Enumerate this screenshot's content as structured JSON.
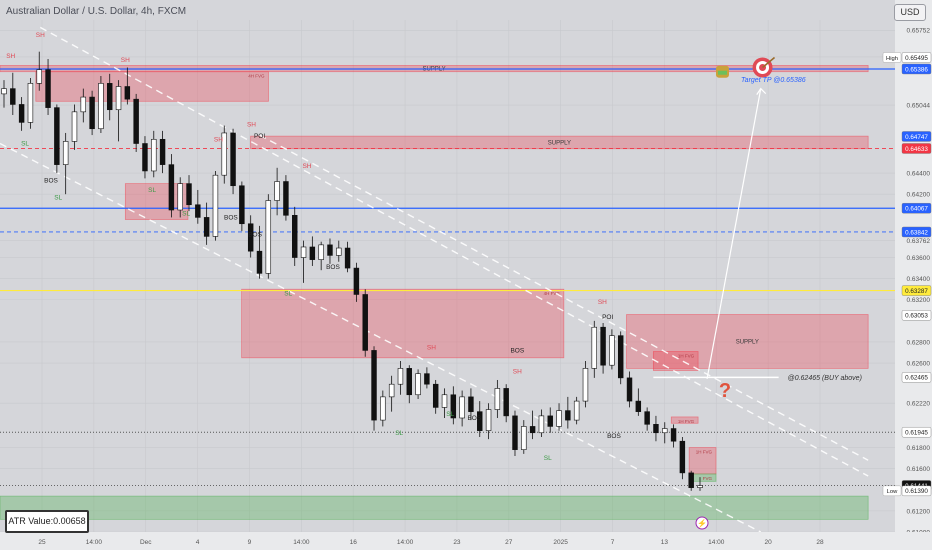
{
  "header": {
    "symbol_title": "Australian Dollar / U.S. Dollar, 4h, FXCM",
    "currency_badge": "USD"
  },
  "indicator": {
    "atr_label": "ATR Value:0.00658"
  },
  "chart_data": {
    "type": "candlestick",
    "title": "Australian Dollar / U.S. Dollar, 4h, FXCM",
    "ylim": [
      0.61,
      0.6585
    ],
    "y_ticks": [
      0.65752,
      0.655,
      0.65044,
      0.644,
      0.642,
      0.63762,
      0.636,
      0.634,
      0.632,
      0.628,
      0.626,
      0.6222,
      0.618,
      0.616,
      0.612,
      0.61
    ],
    "y_tick_labels": [
      "0.65752",
      "0.65500",
      "0.65044",
      "0.64400",
      "0.64200",
      "0.63762",
      "0.63600",
      "0.63400",
      "0.63200",
      "0.62800",
      "0.62600",
      "0.62220",
      "0.61800",
      "0.61600",
      "0.61200",
      "0.61000"
    ],
    "x_tick_labels": [
      "25",
      "14:00",
      "Dec",
      "4",
      "9",
      "14:00",
      "16",
      "14:00",
      "23",
      "27",
      "2025",
      "7",
      "13",
      "14:00",
      "20",
      "28"
    ],
    "price_markers": [
      {
        "label": "High",
        "value": 0.65495,
        "price_text": "0.65495",
        "color": "#ffffff",
        "text_color": "#222222"
      },
      {
        "label": "",
        "value": 0.65386,
        "price_text": "0.65386",
        "color": "#2962ff",
        "text_color": "#ffffff"
      },
      {
        "label": "",
        "value": 0.64747,
        "price_text": "0.64747",
        "color": "#2962ff",
        "text_color": "#ffffff"
      },
      {
        "label": "",
        "value": 0.64633,
        "price_text": "0.64633",
        "color": "#f23645",
        "text_color": "#ffffff"
      },
      {
        "label": "",
        "value": 0.64067,
        "price_text": "0.64067",
        "color": "#2962ff",
        "text_color": "#ffffff"
      },
      {
        "label": "",
        "value": 0.63842,
        "price_text": "0.63842",
        "color": "#2962ff",
        "text_color": "#ffffff"
      },
      {
        "label": "",
        "value": 0.63287,
        "price_text": "0.63287",
        "color": "#ffeb3b",
        "text_color": "#222222"
      },
      {
        "label": "",
        "value": 0.63053,
        "price_text": "0.63053",
        "color": "#ffffff",
        "text_color": "#222222"
      },
      {
        "label": "",
        "value": 0.62465,
        "price_text": "0.62465",
        "color": "#ffffff",
        "text_color": "#222222"
      },
      {
        "label": "",
        "value": 0.61945,
        "price_text": "0.61945",
        "color": "#ffffff",
        "text_color": "#222222"
      },
      {
        "label": "",
        "value": 0.61441,
        "price_text": "0.61441",
        "color": "#111111",
        "text_color": "#ffffff"
      },
      {
        "label": "Low",
        "value": 0.6139,
        "price_text": "0.61390",
        "color": "#ffffff",
        "text_color": "#222222"
      }
    ],
    "horizontal_levels": [
      {
        "value": 0.65386,
        "color": "#2962ff",
        "style": "solid"
      },
      {
        "value": 0.64067,
        "color": "#2962ff",
        "style": "solid"
      },
      {
        "value": 0.63842,
        "color": "#2962ff",
        "style": "dashed"
      },
      {
        "value": 0.64633,
        "color": "#f23645",
        "style": "dashed"
      },
      {
        "value": 0.63287,
        "color": "#ffeb3b",
        "style": "solid"
      },
      {
        "value": 0.61945,
        "color": "#555555",
        "style": "dotted"
      },
      {
        "value": 0.61441,
        "color": "#555555",
        "style": "dotted"
      }
    ],
    "zones": [
      {
        "kind": "supply",
        "label": "SUPPLY",
        "label_fvg": "",
        "y_top": 0.6542,
        "y_bottom": 0.6536,
        "x_start": 0.0,
        "x_end": 0.97
      },
      {
        "kind": "supply",
        "label": "",
        "label_fvg": "4H FVG",
        "y_top": 0.6536,
        "y_bottom": 0.6508,
        "x_start": 0.04,
        "x_end": 0.3
      },
      {
        "kind": "supply",
        "label": "SUPPLY",
        "label_fvg": "",
        "y_top": 0.6475,
        "y_bottom": 0.6463,
        "x_start": 0.28,
        "x_end": 0.97
      },
      {
        "kind": "supply",
        "label": "",
        "label_fvg": "",
        "y_top": 0.643,
        "y_bottom": 0.6396,
        "x_start": 0.14,
        "x_end": 0.21
      },
      {
        "kind": "supply",
        "label": "",
        "label_fvg": "4H FVG",
        "y_top": 0.633,
        "y_bottom": 0.6265,
        "x_start": 0.27,
        "x_end": 0.63
      },
      {
        "kind": "supply",
        "label": "SUPPLY",
        "label_fvg": "",
        "y_top": 0.6306,
        "y_bottom": 0.6255,
        "x_start": 0.7,
        "x_end": 0.97
      },
      {
        "kind": "supply",
        "label": "",
        "label_fvg": "1H FVG",
        "y_top": 0.6271,
        "y_bottom": 0.6253,
        "x_start": 0.73,
        "x_end": 0.78
      },
      {
        "kind": "supply",
        "label": "",
        "label_fvg": "1H FVG",
        "y_top": 0.6209,
        "y_bottom": 0.6203,
        "x_start": 0.75,
        "x_end": 0.78
      },
      {
        "kind": "supply",
        "label": "",
        "label_fvg": "1H FVG",
        "y_top": 0.618,
        "y_bottom": 0.6155,
        "x_start": 0.77,
        "x_end": 0.8
      },
      {
        "kind": "demand",
        "label": "",
        "label_fvg": "FVG",
        "y_top": 0.6155,
        "y_bottom": 0.6148,
        "x_start": 0.77,
        "x_end": 0.8
      },
      {
        "kind": "demand",
        "label": "",
        "label_fvg": "",
        "y_top": 0.6134,
        "y_bottom": 0.6112,
        "x_start": 0.0,
        "x_end": 0.97
      }
    ],
    "structure_labels": [
      {
        "text": "SH",
        "kind": "sh",
        "x": 0.045,
        "y": 0.6569
      },
      {
        "text": "SH",
        "kind": "sh",
        "x": 0.012,
        "y": 0.6549
      },
      {
        "text": "SH",
        "kind": "sh",
        "x": 0.14,
        "y": 0.6545
      },
      {
        "text": "SH",
        "kind": "sh",
        "x": 0.281,
        "y": 0.6484
      },
      {
        "text": "SH",
        "kind": "sh",
        "x": 0.244,
        "y": 0.647
      },
      {
        "text": "SH",
        "kind": "sh",
        "x": 0.343,
        "y": 0.6445
      },
      {
        "text": "SH",
        "kind": "sh",
        "x": 0.482,
        "y": 0.6273
      },
      {
        "text": "SH",
        "kind": "sh",
        "x": 0.578,
        "y": 0.625
      },
      {
        "text": "SH",
        "kind": "sh",
        "x": 0.673,
        "y": 0.6316
      },
      {
        "text": "SL",
        "kind": "sl",
        "x": 0.028,
        "y": 0.6466
      },
      {
        "text": "SL",
        "kind": "sl",
        "x": 0.065,
        "y": 0.6415
      },
      {
        "text": "SL",
        "kind": "sl",
        "x": 0.17,
        "y": 0.6422
      },
      {
        "text": "SL",
        "kind": "sl",
        "x": 0.208,
        "y": 0.64
      },
      {
        "text": "SL",
        "kind": "sl",
        "x": 0.322,
        "y": 0.6324
      },
      {
        "text": "SL",
        "kind": "sl",
        "x": 0.446,
        "y": 0.6192
      },
      {
        "text": "SL",
        "kind": "sl",
        "x": 0.503,
        "y": 0.621
      },
      {
        "text": "SL",
        "kind": "sl",
        "x": 0.612,
        "y": 0.6168
      },
      {
        "text": "BOS",
        "kind": "bos",
        "x": 0.057,
        "y": 0.6431
      },
      {
        "text": "BOS",
        "kind": "bos",
        "x": 0.258,
        "y": 0.6396
      },
      {
        "text": "BOS",
        "kind": "bos",
        "x": 0.285,
        "y": 0.638
      },
      {
        "text": "BOS",
        "kind": "bos",
        "x": 0.372,
        "y": 0.6349
      },
      {
        "text": "BOS",
        "kind": "bos",
        "x": 0.578,
        "y": 0.627
      },
      {
        "text": "BOS",
        "kind": "bos",
        "x": 0.53,
        "y": 0.6206
      },
      {
        "text": "BOS",
        "kind": "bos",
        "x": 0.686,
        "y": 0.6189
      },
      {
        "text": "POI",
        "kind": "poi",
        "x": 0.29,
        "y": 0.6473
      },
      {
        "text": "POI",
        "kind": "poi",
        "x": 0.679,
        "y": 0.6302
      }
    ],
    "annotations": {
      "buy_label": "@0.62465 (BUY above)",
      "target_label": "Target TP @0.65386",
      "question_mark": "?"
    },
    "channel": {
      "upper": [
        [
          0.045,
          0.6578
        ],
        [
          0.97,
          0.6153
        ]
      ],
      "lower": [
        [
          0.0,
          0.6468
        ],
        [
          0.85,
          0.61
        ]
      ],
      "mid": [
        [
          0.29,
          0.6476
        ],
        [
          0.97,
          0.6168
        ]
      ]
    },
    "projection_arrow": {
      "from": [
        0.79,
        0.6245
      ],
      "to": [
        0.85,
        0.652
      ]
    },
    "candles": [
      {
        "o": 0.6515,
        "h": 0.6528,
        "l": 0.6502,
        "c": 0.652
      },
      {
        "o": 0.652,
        "h": 0.6535,
        "l": 0.6495,
        "c": 0.6505
      },
      {
        "o": 0.6505,
        "h": 0.6512,
        "l": 0.648,
        "c": 0.6488
      },
      {
        "o": 0.6488,
        "h": 0.653,
        "l": 0.6482,
        "c": 0.6525
      },
      {
        "o": 0.6525,
        "h": 0.6555,
        "l": 0.6518,
        "c": 0.6538
      },
      {
        "o": 0.6538,
        "h": 0.6548,
        "l": 0.6495,
        "c": 0.6502
      },
      {
        "o": 0.6502,
        "h": 0.6505,
        "l": 0.644,
        "c": 0.6448
      },
      {
        "o": 0.6448,
        "h": 0.6478,
        "l": 0.642,
        "c": 0.647
      },
      {
        "o": 0.647,
        "h": 0.6505,
        "l": 0.6462,
        "c": 0.6498
      },
      {
        "o": 0.6498,
        "h": 0.652,
        "l": 0.6488,
        "c": 0.6512
      },
      {
        "o": 0.6512,
        "h": 0.6518,
        "l": 0.6476,
        "c": 0.6482
      },
      {
        "o": 0.6482,
        "h": 0.6532,
        "l": 0.6478,
        "c": 0.6525
      },
      {
        "o": 0.6525,
        "h": 0.6534,
        "l": 0.649,
        "c": 0.65
      },
      {
        "o": 0.65,
        "h": 0.6528,
        "l": 0.647,
        "c": 0.6522
      },
      {
        "o": 0.6522,
        "h": 0.654,
        "l": 0.6505,
        "c": 0.651
      },
      {
        "o": 0.651,
        "h": 0.6515,
        "l": 0.646,
        "c": 0.6468
      },
      {
        "o": 0.6468,
        "h": 0.6475,
        "l": 0.6435,
        "c": 0.6442
      },
      {
        "o": 0.6442,
        "h": 0.648,
        "l": 0.6436,
        "c": 0.6472
      },
      {
        "o": 0.6472,
        "h": 0.648,
        "l": 0.644,
        "c": 0.6448
      },
      {
        "o": 0.6448,
        "h": 0.6458,
        "l": 0.6398,
        "c": 0.6405
      },
      {
        "o": 0.6405,
        "h": 0.6436,
        "l": 0.6398,
        "c": 0.643
      },
      {
        "o": 0.643,
        "h": 0.6438,
        "l": 0.6404,
        "c": 0.641
      },
      {
        "o": 0.641,
        "h": 0.6424,
        "l": 0.6392,
        "c": 0.6398
      },
      {
        "o": 0.6398,
        "h": 0.6412,
        "l": 0.6372,
        "c": 0.638
      },
      {
        "o": 0.638,
        "h": 0.6442,
        "l": 0.6376,
        "c": 0.6438
      },
      {
        "o": 0.6438,
        "h": 0.6485,
        "l": 0.643,
        "c": 0.6478
      },
      {
        "o": 0.6478,
        "h": 0.6482,
        "l": 0.642,
        "c": 0.6428
      },
      {
        "o": 0.6428,
        "h": 0.6432,
        "l": 0.6385,
        "c": 0.6392
      },
      {
        "o": 0.6392,
        "h": 0.64,
        "l": 0.636,
        "c": 0.6366
      },
      {
        "o": 0.6366,
        "h": 0.639,
        "l": 0.634,
        "c": 0.6345
      },
      {
        "o": 0.6345,
        "h": 0.642,
        "l": 0.634,
        "c": 0.6414
      },
      {
        "o": 0.6414,
        "h": 0.6445,
        "l": 0.64,
        "c": 0.6432
      },
      {
        "o": 0.6432,
        "h": 0.6438,
        "l": 0.6395,
        "c": 0.64
      },
      {
        "o": 0.64,
        "h": 0.6408,
        "l": 0.6352,
        "c": 0.636
      },
      {
        "o": 0.636,
        "h": 0.6376,
        "l": 0.6336,
        "c": 0.637
      },
      {
        "o": 0.637,
        "h": 0.638,
        "l": 0.6352,
        "c": 0.6358
      },
      {
        "o": 0.6358,
        "h": 0.6375,
        "l": 0.6348,
        "c": 0.6372
      },
      {
        "o": 0.6372,
        "h": 0.6378,
        "l": 0.6354,
        "c": 0.6362
      },
      {
        "o": 0.6362,
        "h": 0.6376,
        "l": 0.6356,
        "c": 0.6369
      },
      {
        "o": 0.6369,
        "h": 0.6375,
        "l": 0.6346,
        "c": 0.635
      },
      {
        "o": 0.635,
        "h": 0.6355,
        "l": 0.6318,
        "c": 0.6325
      },
      {
        "o": 0.6325,
        "h": 0.633,
        "l": 0.6266,
        "c": 0.6272
      },
      {
        "o": 0.6272,
        "h": 0.6276,
        "l": 0.6196,
        "c": 0.6206
      },
      {
        "o": 0.6206,
        "h": 0.6234,
        "l": 0.62,
        "c": 0.6228
      },
      {
        "o": 0.6228,
        "h": 0.6248,
        "l": 0.6214,
        "c": 0.624
      },
      {
        "o": 0.624,
        "h": 0.6262,
        "l": 0.623,
        "c": 0.6255
      },
      {
        "o": 0.6255,
        "h": 0.6258,
        "l": 0.6222,
        "c": 0.623
      },
      {
        "o": 0.623,
        "h": 0.6254,
        "l": 0.6226,
        "c": 0.625
      },
      {
        "o": 0.625,
        "h": 0.6256,
        "l": 0.6236,
        "c": 0.624
      },
      {
        "o": 0.624,
        "h": 0.6244,
        "l": 0.6212,
        "c": 0.6218
      },
      {
        "o": 0.6218,
        "h": 0.6236,
        "l": 0.6208,
        "c": 0.623
      },
      {
        "o": 0.623,
        "h": 0.6238,
        "l": 0.6202,
        "c": 0.6208
      },
      {
        "o": 0.6208,
        "h": 0.6234,
        "l": 0.62,
        "c": 0.6228
      },
      {
        "o": 0.6228,
        "h": 0.6236,
        "l": 0.6206,
        "c": 0.6214
      },
      {
        "o": 0.6214,
        "h": 0.6224,
        "l": 0.619,
        "c": 0.6196
      },
      {
        "o": 0.6196,
        "h": 0.6222,
        "l": 0.6188,
        "c": 0.6216
      },
      {
        "o": 0.6216,
        "h": 0.6244,
        "l": 0.6208,
        "c": 0.6236
      },
      {
        "o": 0.6236,
        "h": 0.624,
        "l": 0.6204,
        "c": 0.621
      },
      {
        "o": 0.621,
        "h": 0.6215,
        "l": 0.6172,
        "c": 0.6178
      },
      {
        "o": 0.6178,
        "h": 0.6206,
        "l": 0.6174,
        "c": 0.62
      },
      {
        "o": 0.62,
        "h": 0.6215,
        "l": 0.6188,
        "c": 0.6194
      },
      {
        "o": 0.6194,
        "h": 0.6216,
        "l": 0.619,
        "c": 0.621
      },
      {
        "o": 0.621,
        "h": 0.6218,
        "l": 0.6194,
        "c": 0.62
      },
      {
        "o": 0.62,
        "h": 0.6222,
        "l": 0.6196,
        "c": 0.6215
      },
      {
        "o": 0.6215,
        "h": 0.6228,
        "l": 0.6198,
        "c": 0.6206
      },
      {
        "o": 0.6206,
        "h": 0.6228,
        "l": 0.6202,
        "c": 0.6224
      },
      {
        "o": 0.6224,
        "h": 0.6262,
        "l": 0.6218,
        "c": 0.6255
      },
      {
        "o": 0.6255,
        "h": 0.63,
        "l": 0.6246,
        "c": 0.6294
      },
      {
        "o": 0.6294,
        "h": 0.6298,
        "l": 0.625,
        "c": 0.6258
      },
      {
        "o": 0.6258,
        "h": 0.6292,
        "l": 0.6254,
        "c": 0.6286
      },
      {
        "o": 0.6286,
        "h": 0.629,
        "l": 0.624,
        "c": 0.6246
      },
      {
        "o": 0.6246,
        "h": 0.6252,
        "l": 0.6218,
        "c": 0.6224
      },
      {
        "o": 0.6224,
        "h": 0.6236,
        "l": 0.621,
        "c": 0.6214
      },
      {
        "o": 0.6214,
        "h": 0.6218,
        "l": 0.6196,
        "c": 0.6202
      },
      {
        "o": 0.6202,
        "h": 0.621,
        "l": 0.6186,
        "c": 0.6194
      },
      {
        "o": 0.6194,
        "h": 0.6204,
        "l": 0.6184,
        "c": 0.6198
      },
      {
        "o": 0.6198,
        "h": 0.6202,
        "l": 0.618,
        "c": 0.6186
      },
      {
        "o": 0.6186,
        "h": 0.619,
        "l": 0.615,
        "c": 0.6156
      },
      {
        "o": 0.6156,
        "h": 0.6158,
        "l": 0.6139,
        "c": 0.6142
      },
      {
        "o": 0.6142,
        "h": 0.6152,
        "l": 0.6139,
        "c": 0.6144
      }
    ]
  }
}
